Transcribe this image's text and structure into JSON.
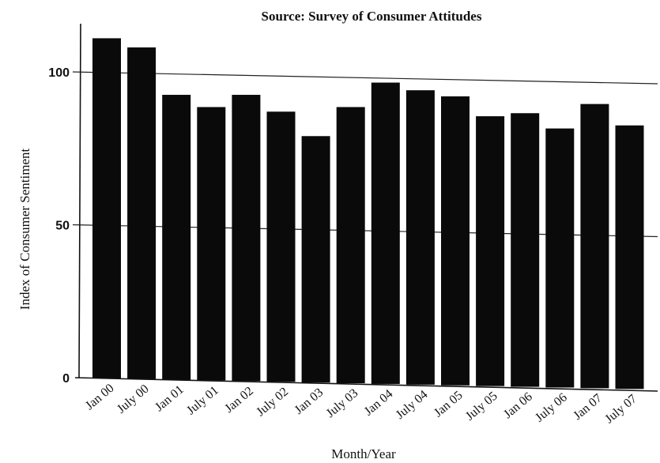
{
  "chart_data": {
    "type": "bar",
    "title": "Source: Survey of Consumer Attitudes",
    "xlabel": "Month/Year",
    "ylabel": "Index of Consumer Sentiment",
    "categories": [
      "Jan 00",
      "July 00",
      "Jan 01",
      "July 01",
      "Jan 02",
      "July 02",
      "Jan 03",
      "July 03",
      "Jan 04",
      "July 04",
      "Jan 05",
      "July 05",
      "Jan 06",
      "July 06",
      "Jan 07",
      "July 07"
    ],
    "values": [
      111,
      108,
      92.5,
      88.5,
      92.5,
      87,
      79,
      88.5,
      96.5,
      94,
      92,
      85.5,
      86.5,
      81.5,
      89.5,
      82.5
    ],
    "yticks": [
      0,
      50,
      100
    ],
    "ytick_labels": [
      "0",
      "50",
      "100"
    ],
    "ylim": [
      0,
      118
    ],
    "grid": "horizontal at 50 and 100",
    "legend": "none",
    "bar_color": "#0a0a0a"
  }
}
